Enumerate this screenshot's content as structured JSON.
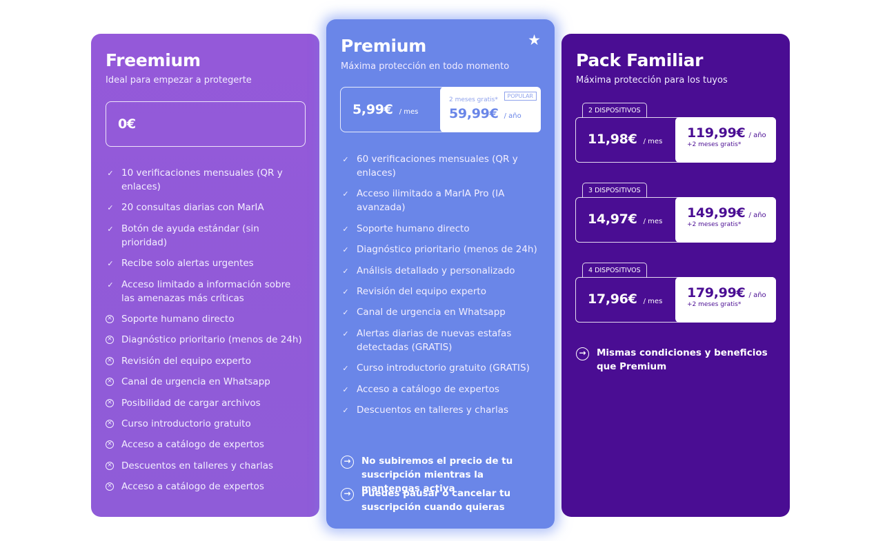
{
  "freemium": {
    "title": "Freemium",
    "subtitle": "Ideal para empezar a protegerte",
    "price": "0€",
    "features": [
      {
        "text": "10 verificaciones mensuales (QR y enlaces)",
        "included": true
      },
      {
        "text": "20 consultas diarias con MarIA",
        "included": true
      },
      {
        "text": "Botón de ayuda estándar (sin prioridad)",
        "included": true
      },
      {
        "text": "Recibe solo alertas urgentes",
        "included": true
      },
      {
        "text": "Acceso limitado a información sobre las amenazas más críticas",
        "included": true
      },
      {
        "text": "Soporte humano directo",
        "included": false
      },
      {
        "text": "Diagnóstico prioritario (menos de 24h)",
        "included": false
      },
      {
        "text": "Revisión del equipo experto",
        "included": false
      },
      {
        "text": "Canal de urgencia en Whatsapp",
        "included": false
      },
      {
        "text": "Posibilidad de cargar archivos",
        "included": false
      },
      {
        "text": "Curso introductorio gratuito",
        "included": false
      },
      {
        "text": "Acceso a catálogo de expertos",
        "included": false
      },
      {
        "text": "Descuentos en talleres y charlas",
        "included": false
      },
      {
        "text": "Acceso a catálogo de expertos",
        "included": false
      }
    ]
  },
  "premium": {
    "title": "Premium",
    "subtitle": "Máxima protección en todo momento",
    "star_icon": "star-icon",
    "monthly_price": "5,99€",
    "monthly_unit": "/ mes",
    "yearly_note": "2 meses gratis*",
    "badge": "POPULAR",
    "yearly_price": "59,99€",
    "yearly_unit": "/ año",
    "features": [
      "60 verificaciones mensuales (QR y enlaces)",
      "Acceso ilimitado a MarIA Pro (IA avanzada)",
      "Soporte humano directo",
      "Diagnóstico prioritario (menos de 24h)",
      "Análisis detallado y personalizado",
      "Revisión del equipo experto",
      "Canal de urgencia en Whatsapp",
      "Alertas diarias de nuevas estafas detectadas (GRATIS)",
      "Curso introductorio gratuito (GRATIS)",
      "Acceso a catálogo de expertos",
      "Descuentos en talleres y charlas"
    ],
    "notes": [
      "No subiremos el precio de tu suscripción mientras la mantengas activa",
      "Puedes pausar o cancelar tu suscripción cuando quieras"
    ]
  },
  "familiar": {
    "title": "Pack Familiar",
    "subtitle": "Máxima protección para los tuyos",
    "packs": [
      {
        "tag": "2 DISPOSITIVOS",
        "monthly": "11,98€",
        "monthly_unit": "/ mes",
        "yearly": "119,99€",
        "yearly_unit": "/ año",
        "note": "+2 meses gratis*"
      },
      {
        "tag": "3 DISPOSITIVOS",
        "monthly": "14,97€",
        "monthly_unit": "/ mes",
        "yearly": "149,99€",
        "yearly_unit": "/ año",
        "note": "+2 meses gratis*"
      },
      {
        "tag": "4 DISPOSITIVOS",
        "monthly": "17,96€",
        "monthly_unit": "/ mes",
        "yearly": "179,99€",
        "yearly_unit": "/ año",
        "note": "+2 meses gratis*"
      }
    ],
    "note": "Mismas condiciones y beneficios que Premium"
  },
  "colors": {
    "freemium_bg": "#9459d9",
    "premium_bg": "#6a86e8",
    "familiar_bg": "#4a0d93"
  }
}
